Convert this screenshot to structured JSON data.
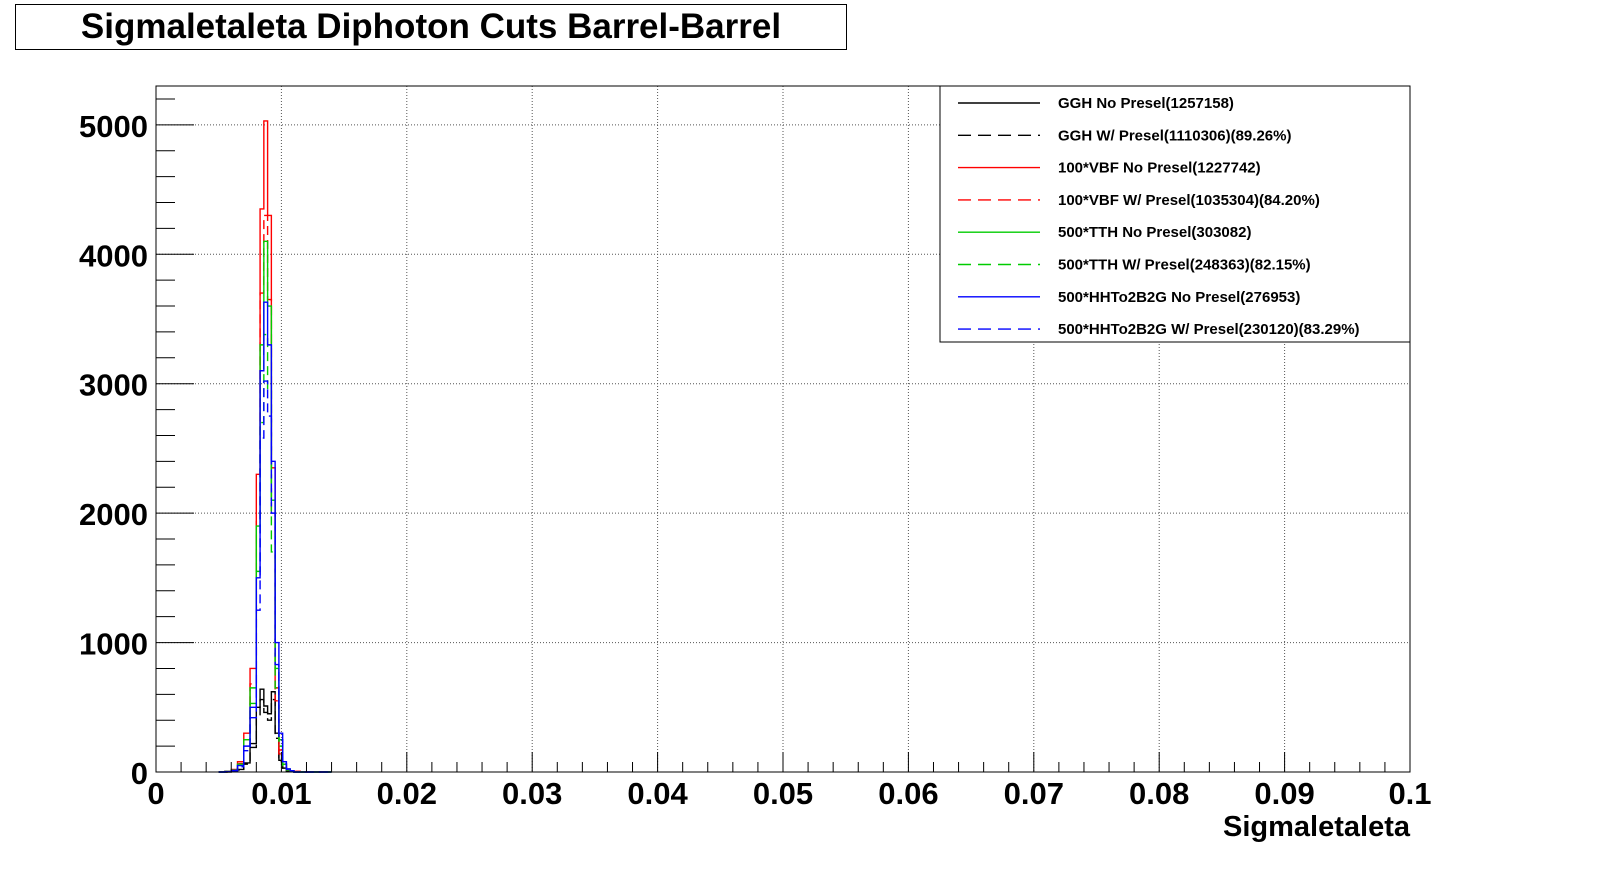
{
  "chart_data": {
    "type": "histogram",
    "title": "Sigmaletaleta Diphoton Cuts Barrel-Barrel",
    "xlabel": "Sigmaletaleta",
    "ylabel": "",
    "xlim": [
      0,
      0.1
    ],
    "ylim": [
      0,
      5300
    ],
    "grid": true,
    "legend_position": "top-right",
    "x_ticks": [
      "0",
      "0.01",
      "0.02",
      "0.03",
      "0.04",
      "0.05",
      "0.06",
      "0.07",
      "0.08",
      "0.09",
      "0.1"
    ],
    "y_ticks": [
      "0",
      "1000",
      "2000",
      "3000",
      "4000",
      "5000"
    ],
    "bin_edges": [
      0.005,
      0.0055,
      0.006,
      0.0065,
      0.007,
      0.0075,
      0.008,
      0.0083,
      0.0086,
      0.0089,
      0.0092,
      0.0095,
      0.0098,
      0.0101,
      0.0104,
      0.0107,
      0.011,
      0.0115,
      0.012,
      0.013,
      0.014
    ],
    "series": [
      {
        "name": "GGH No Presel(1257158)",
        "color": "#000000",
        "dashed": false,
        "values": [
          0,
          0,
          5,
          20,
          70,
          220,
          500,
          640,
          510,
          450,
          620,
          300,
          90,
          30,
          10,
          5,
          0,
          0,
          0,
          0
        ]
      },
      {
        "name": "GGH W/ Presel(1110306)(89.26%)",
        "color": "#000000",
        "dashed": true,
        "values": [
          0,
          0,
          4,
          15,
          60,
          190,
          430,
          560,
          460,
          400,
          560,
          260,
          80,
          25,
          8,
          4,
          0,
          0,
          0,
          0
        ]
      },
      {
        "name": "100*VBF No Presel(1227742)",
        "color": "#ff0000",
        "dashed": false,
        "values": [
          0,
          5,
          20,
          80,
          300,
          800,
          2300,
          4350,
          5030,
          4300,
          2350,
          650,
          170,
          60,
          20,
          10,
          5,
          0,
          0,
          0
        ]
      },
      {
        "name": "100*VBF W/ Presel(1035304)(84.20%)",
        "color": "#ff0000",
        "dashed": true,
        "values": [
          0,
          4,
          15,
          65,
          250,
          680,
          1950,
          3700,
          4300,
          3650,
          2000,
          550,
          140,
          50,
          15,
          8,
          4,
          0,
          0,
          0
        ]
      },
      {
        "name": "500*TTH No Presel(303082)",
        "color": "#00cc00",
        "dashed": false,
        "values": [
          0,
          4,
          15,
          60,
          250,
          650,
          1900,
          3300,
          4100,
          3600,
          2100,
          800,
          250,
          60,
          20,
          8,
          0,
          0,
          0,
          0
        ]
      },
      {
        "name": "500*TTH W/ Presel(248363)(82.15%)",
        "color": "#00cc00",
        "dashed": true,
        "values": [
          0,
          3,
          12,
          50,
          200,
          530,
          1550,
          2700,
          3380,
          2950,
          1700,
          650,
          200,
          50,
          15,
          6,
          0,
          0,
          0,
          0
        ]
      },
      {
        "name": "500*HHTo2B2G No Presel(276953)",
        "color": "#0000ff",
        "dashed": false,
        "values": [
          0,
          3,
          12,
          50,
          200,
          500,
          1500,
          3100,
          3630,
          3300,
          2400,
          1000,
          300,
          80,
          25,
          10,
          0,
          0,
          0,
          0
        ]
      },
      {
        "name": "500*HHTo2B2G W/ Presel(230120)(83.29%)",
        "color": "#0000ff",
        "dashed": true,
        "values": [
          0,
          2,
          10,
          40,
          165,
          420,
          1250,
          2580,
          3020,
          2750,
          2000,
          830,
          250,
          65,
          20,
          8,
          0,
          0,
          0,
          0
        ]
      }
    ]
  }
}
